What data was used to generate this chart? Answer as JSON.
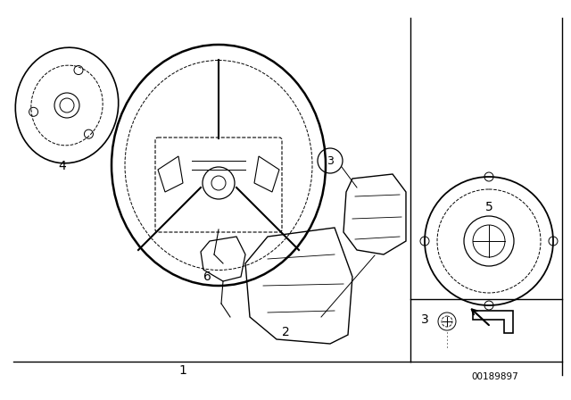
{
  "background_color": "#ffffff",
  "text_color": "#000000",
  "part_number_text": "00189897",
  "fig_width": 6.4,
  "fig_height": 4.48,
  "dpi": 100
}
